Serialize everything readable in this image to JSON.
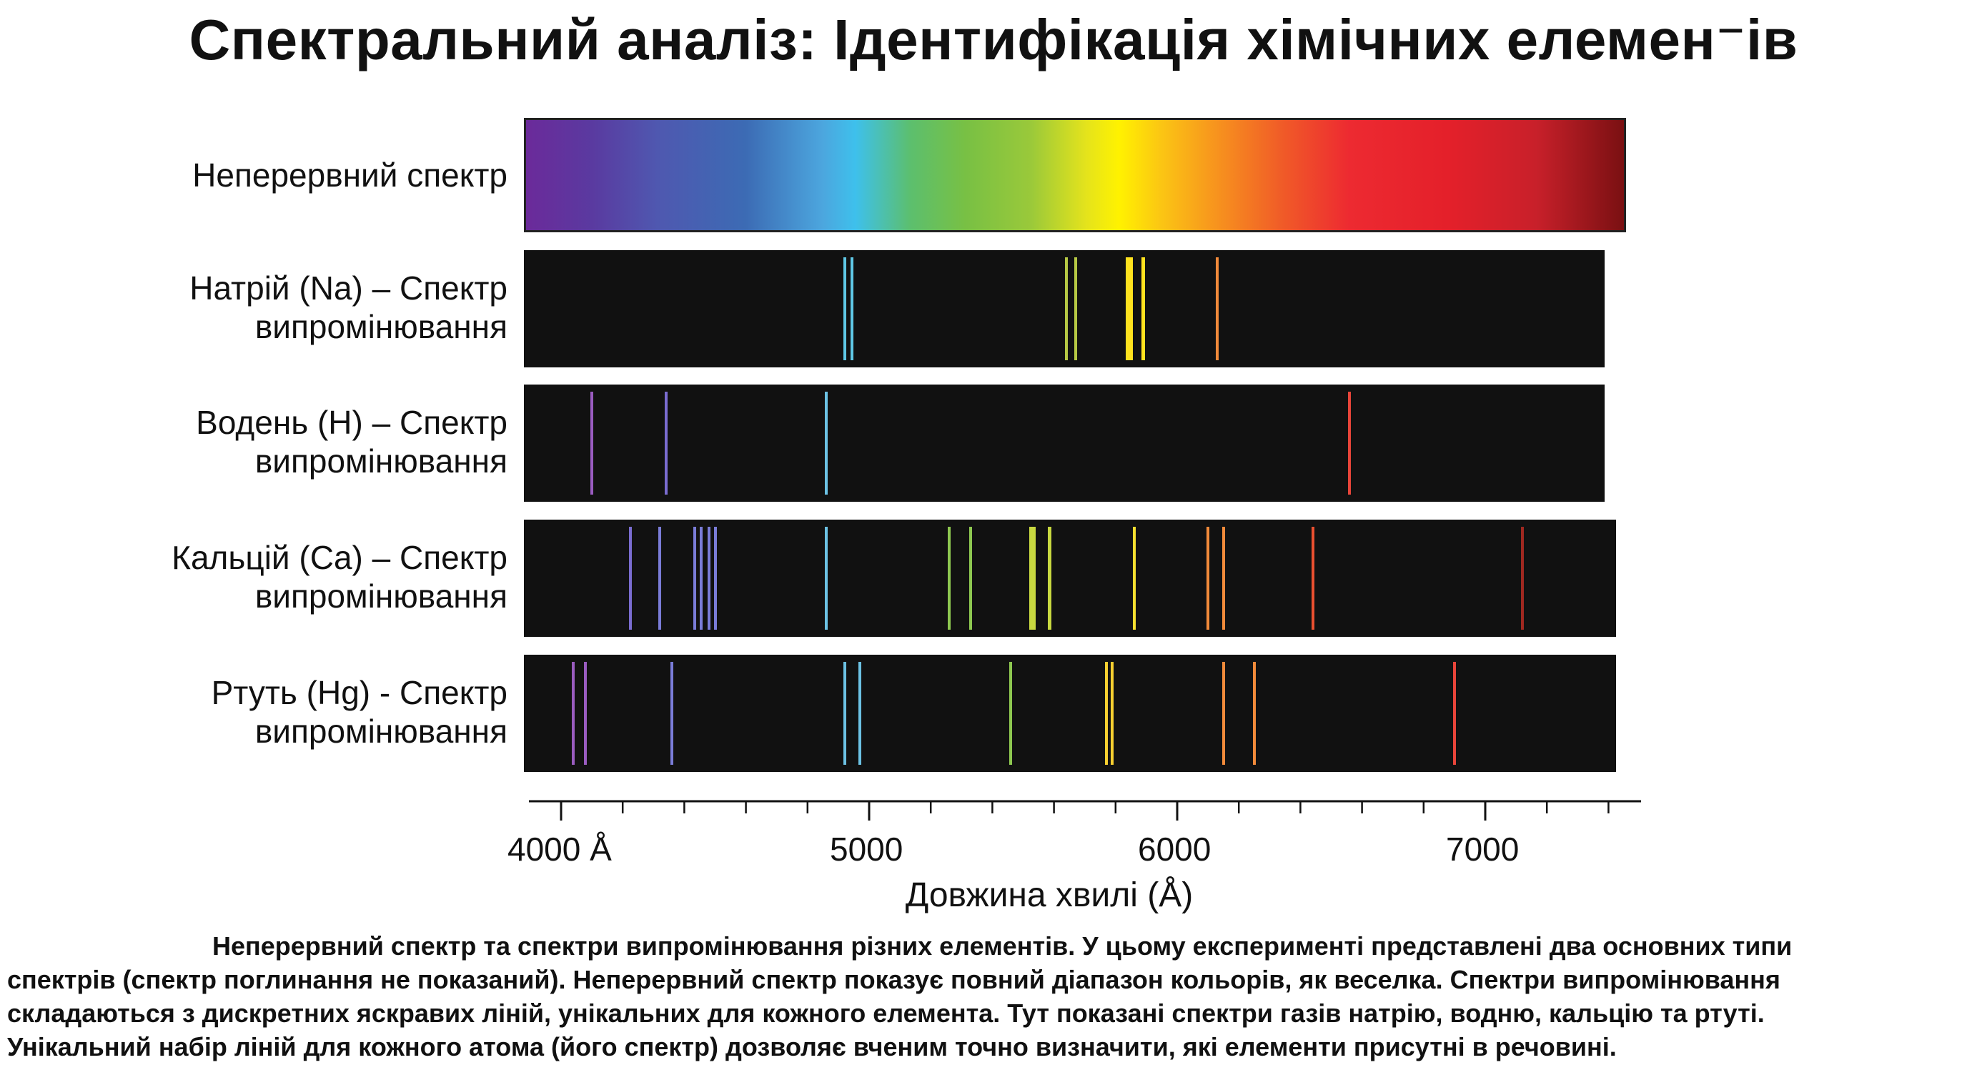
{
  "title": "Спектральний аналіз: Ідентифікація хімічних елемен⁻ів",
  "continuous": {
    "label": "Неперервний спектр"
  },
  "rows": [
    {
      "label1": "Натрій (Na) – Спектр",
      "label2": "випромінювання",
      "lines": [
        {
          "wl": 4920,
          "color": "#5fc8e6",
          "w": 4
        },
        {
          "wl": 4945,
          "color": "#5fc8e6",
          "w": 4
        },
        {
          "wl": 5640,
          "color": "#b6c844",
          "w": 4
        },
        {
          "wl": 5670,
          "color": "#b6c844",
          "w": 4
        },
        {
          "wl": 5845,
          "color": "#ffe21e",
          "w": 10
        },
        {
          "wl": 5890,
          "color": "#ffe21e",
          "w": 5
        },
        {
          "wl": 6130,
          "color": "#f28a3a",
          "w": 4
        }
      ]
    },
    {
      "label1": "Водень (H) – Спектр",
      "label2": "випромінювання",
      "lines": [
        {
          "wl": 4100,
          "color": "#9a5cc0",
          "w": 4
        },
        {
          "wl": 4340,
          "color": "#7a6cd0",
          "w": 4
        },
        {
          "wl": 4860,
          "color": "#6cc2e4",
          "w": 4
        },
        {
          "wl": 6560,
          "color": "#e8453a",
          "w": 4
        }
      ]
    },
    {
      "label1": "Кальцій (Ca) – Спектр",
      "label2": "випромінювання",
      "lines": [
        {
          "wl": 4225,
          "color": "#7a6cd0",
          "w": 4
        },
        {
          "wl": 4320,
          "color": "#7a7cd8",
          "w": 4
        },
        {
          "wl": 4435,
          "color": "#7a7cd8",
          "w": 4
        },
        {
          "wl": 4455,
          "color": "#7a7cd8",
          "w": 4
        },
        {
          "wl": 4480,
          "color": "#7a7cd8",
          "w": 4
        },
        {
          "wl": 4500,
          "color": "#7a7cd8",
          "w": 4
        },
        {
          "wl": 4860,
          "color": "#6cc2e4",
          "w": 4
        },
        {
          "wl": 5260,
          "color": "#8ec850",
          "w": 4
        },
        {
          "wl": 5330,
          "color": "#8ec850",
          "w": 4
        },
        {
          "wl": 5530,
          "color": "#c8d840",
          "w": 9
        },
        {
          "wl": 5585,
          "color": "#c8d840",
          "w": 5
        },
        {
          "wl": 5860,
          "color": "#f8e030",
          "w": 4
        },
        {
          "wl": 6100,
          "color": "#f28a3a",
          "w": 4
        },
        {
          "wl": 6150,
          "color": "#f28a3a",
          "w": 4
        },
        {
          "wl": 6440,
          "color": "#ea5030",
          "w": 4
        },
        {
          "wl": 7120,
          "color": "#a02820",
          "w": 4
        }
      ]
    },
    {
      "label1": "Ртуть (Hg) - Спектр",
      "label2": "випромінювання",
      "lines": [
        {
          "wl": 4040,
          "color": "#9a5cc0",
          "w": 4
        },
        {
          "wl": 4080,
          "color": "#9a5cc0",
          "w": 4
        },
        {
          "wl": 4360,
          "color": "#7a7cd8",
          "w": 4
        },
        {
          "wl": 4920,
          "color": "#6cc2e4",
          "w": 4
        },
        {
          "wl": 4970,
          "color": "#6cc2e4",
          "w": 4
        },
        {
          "wl": 5460,
          "color": "#8ec850",
          "w": 4
        },
        {
          "wl": 5770,
          "color": "#f8d030",
          "w": 4
        },
        {
          "wl": 5790,
          "color": "#f8d030",
          "w": 4
        },
        {
          "wl": 6150,
          "color": "#f28a3a",
          "w": 4
        },
        {
          "wl": 6250,
          "color": "#f28a3a",
          "w": 4
        },
        {
          "wl": 6900,
          "color": "#e8453a",
          "w": 4
        }
      ]
    }
  ],
  "axis": {
    "xlabel": "Довжина хвилі (Å)",
    "range": [
      3900,
      7500
    ],
    "major_ticks": [
      4000,
      5000,
      6000,
      7000
    ],
    "tick_labels": [
      "4000 Å",
      "5000",
      "6000",
      "7000"
    ]
  },
  "caption": [
    "Неперервний спектр та спектри випромінювання різних елементів. У цьому експерименті представлені два основних типи",
    "спектрів (спектр поглинання не показаний). Неперервний спектр показує повний діапазон кольорів, як веселка. Спектри випромінювання",
    "складаються з дискретних яскравих ліній, унікальних для кожного елемента. Тут показані спектри газів натрію, водню, кальцію та ртуті.",
    "Унікальний набір ліній для кожного атома (його спектр) дозволяє вченим точно визначити, які елементи присутні в речовині."
  ]
}
